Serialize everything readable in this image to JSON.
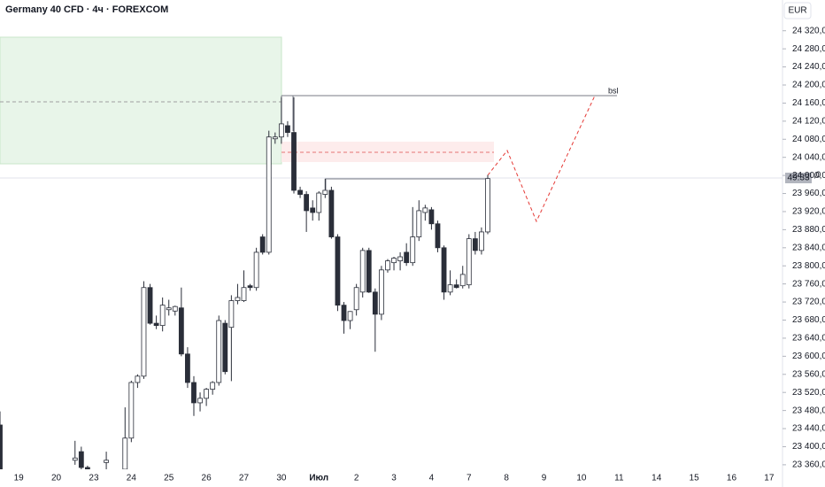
{
  "chart_data": {
    "type": "candlestick",
    "title": "Germany 40 CFD · 4ч · FOREXCOM",
    "currency": "EUR",
    "annotations": [
      "bsl"
    ],
    "price_label": "49:33",
    "price_label_tail": ",0",
    "x_labels": [
      "19",
      "20",
      "23",
      "24",
      "25",
      "26",
      "27",
      "30",
      "Июл",
      "2",
      "3",
      "4",
      "7",
      "8",
      "9",
      "10",
      "11",
      "14",
      "15",
      "16",
      "17"
    ],
    "ylim": [
      23350,
      24388
    ],
    "yticks": [
      {
        "value": 23360,
        "label": "23 360,0"
      },
      {
        "value": 23400,
        "label": "23 400,0"
      },
      {
        "value": 23440,
        "label": "23 440,0"
      },
      {
        "value": 23480,
        "label": "23 480,0"
      },
      {
        "value": 23520,
        "label": "23 520,0"
      },
      {
        "value": 23560,
        "label": "23 560,0"
      },
      {
        "value": 23600,
        "label": "23 600,0"
      },
      {
        "value": 23640,
        "label": "23 640,0"
      },
      {
        "value": 23680,
        "label": "23 680,0"
      },
      {
        "value": 23720,
        "label": "23 720,0"
      },
      {
        "value": 23760,
        "label": "23 760,0"
      },
      {
        "value": 23800,
        "label": "23 800,0"
      },
      {
        "value": 23840,
        "label": "23 840,0"
      },
      {
        "value": 23880,
        "label": "23 880,0"
      },
      {
        "value": 23920,
        "label": "23 920,0"
      },
      {
        "value": 23960,
        "label": "23 960,0"
      },
      {
        "value": 24000,
        "label": "24 000,0"
      },
      {
        "value": 24040,
        "label": "24 040,0"
      },
      {
        "value": 24080,
        "label": "24 080,0"
      },
      {
        "value": 24120,
        "label": "24 120,0"
      },
      {
        "value": 24160,
        "label": "24 160,0"
      },
      {
        "value": 24200,
        "label": "24 200,0"
      },
      {
        "value": 24240,
        "label": "24 240,0"
      },
      {
        "value": 24280,
        "label": "24 280,0"
      },
      {
        "value": 24320,
        "label": "24 320,0"
      }
    ],
    "up_color": "#ffffff",
    "down_color": "#2a2e39",
    "outline_color": "#2a2e39",
    "open": [
      23448,
      null,
      null,
      null,
      null,
      null,
      null,
      null,
      null,
      null,
      null,
      null,
      23370,
      23389,
      23354,
      null,
      null,
      23365,
      null,
      null,
      23350,
      23419,
      23542,
      23556,
      23752,
      23673,
      23668,
      23703,
      23700,
      23707,
      23605,
      23542,
      23497,
      23507,
      23527,
      23542,
      23673,
      23664,
      23723,
      23723,
      23756,
      23752,
      23864,
      23830,
      24081,
      24085,
      24110,
      24095,
      23967,
      23958,
      23928,
      23918,
      23958,
      23967,
      23864,
      23713,
      23679,
      23703,
      23742,
      23834,
      23742,
      23693,
      23791,
      23807,
      23811,
      23830,
      23807,
      23864,
      23918,
      23924,
      23893,
      23840,
      23742,
      23758,
      23756,
      23758,
      23860,
      23834,
      23875
    ],
    "high": [
      23478,
      null,
      null,
      null,
      null,
      null,
      null,
      null,
      null,
      null,
      null,
      null,
      23413,
      23400,
      23358,
      null,
      null,
      23389,
      null,
      null,
      23487,
      23546,
      23560,
      23766,
      23760,
      23690,
      23730,
      23725,
      23712,
      23752,
      23620,
      23556,
      23520,
      23530,
      23545,
      23690,
      23680,
      23735,
      23760,
      23790,
      23760,
      23840,
      23870,
      24099,
      24095,
      24173,
      24120,
      24173,
      23975,
      23965,
      23945,
      23965,
      23993,
      23975,
      23870,
      23720,
      23700,
      23760,
      23840,
      23840,
      23750,
      23800,
      23815,
      23820,
      23830,
      23850,
      23930,
      23945,
      23935,
      23930,
      23900,
      23845,
      23790,
      23770,
      23800,
      23870,
      23875,
      23885,
      24001
    ],
    "low": [
      23330,
      null,
      null,
      null,
      null,
      null,
      null,
      null,
      null,
      null,
      null,
      null,
      23360,
      23350,
      23340,
      null,
      null,
      23340,
      null,
      null,
      23340,
      23410,
      23530,
      23550,
      23670,
      23660,
      23655,
      23690,
      23690,
      23600,
      23530,
      23468,
      23478,
      23490,
      23515,
      23535,
      23560,
      23545,
      23715,
      23720,
      23745,
      23745,
      23825,
      23825,
      24070,
      24070,
      24085,
      23960,
      23950,
      23875,
      23900,
      23900,
      23950,
      23860,
      23700,
      23650,
      23660,
      23690,
      23730,
      23740,
      23610,
      23680,
      23785,
      23790,
      23790,
      23800,
      23800,
      23855,
      23900,
      23880,
      23830,
      23725,
      23735,
      23750,
      23750,
      23750,
      23825,
      23825,
      23870
    ],
    "close": [
      23350,
      null,
      null,
      null,
      null,
      null,
      null,
      null,
      null,
      null,
      null,
      null,
      23375,
      23354,
      23346,
      null,
      null,
      23370,
      null,
      null,
      23419,
      23542,
      23556,
      23752,
      23673,
      23668,
      23713,
      23707,
      23710,
      23605,
      23542,
      23497,
      23507,
      23527,
      23542,
      23679,
      23566,
      23723,
      23730,
      23752,
      23752,
      23830,
      23830,
      24085,
      24085,
      24114,
      24095,
      23967,
      23958,
      23922,
      23918,
      23961,
      23967,
      23864,
      23713,
      23679,
      23699,
      23752,
      23834,
      23742,
      23693,
      23791,
      23811,
      23817,
      23820,
      23807,
      23864,
      23922,
      23928,
      23893,
      23840,
      23742,
      23758,
      23752,
      23781,
      23860,
      23834,
      23875,
      23993
    ]
  }
}
